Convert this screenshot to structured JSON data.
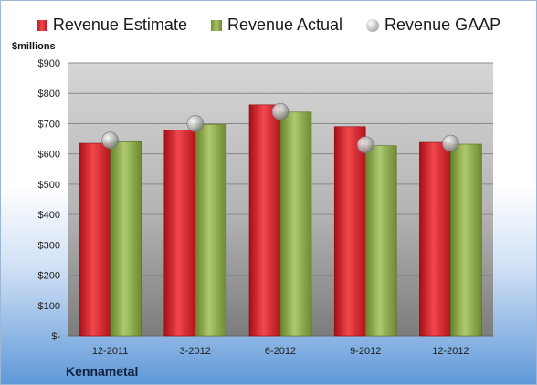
{
  "chart_data": {
    "type": "bar",
    "categories": [
      "12-2011",
      "3-2012",
      "6-2012",
      "9-2012",
      "12-2012"
    ],
    "series": [
      {
        "name": "Revenue Estimate",
        "values": [
          635,
          678,
          762,
          690,
          638
        ],
        "color": "#d9262e",
        "kind": "bar"
      },
      {
        "name": "Revenue Actual",
        "values": [
          640,
          697,
          738,
          627,
          632
        ],
        "color": "#8fae4c",
        "kind": "bar"
      },
      {
        "name": "Revenue GAAP",
        "values": [
          645,
          700,
          740,
          630,
          635
        ],
        "color": "#b8b8b8",
        "kind": "marker"
      }
    ],
    "ylim": [
      0,
      900
    ],
    "yticks": [
      0,
      100,
      200,
      300,
      400,
      500,
      600,
      700,
      800,
      900
    ],
    "ytick_labels": [
      "$-",
      "$100",
      "$200",
      "$300",
      "$400",
      "$500",
      "$600",
      "$700",
      "$800",
      "$900"
    ],
    "ylabel": "$millions",
    "company": "Kennametal",
    "legend_position": "top",
    "grid": true
  }
}
